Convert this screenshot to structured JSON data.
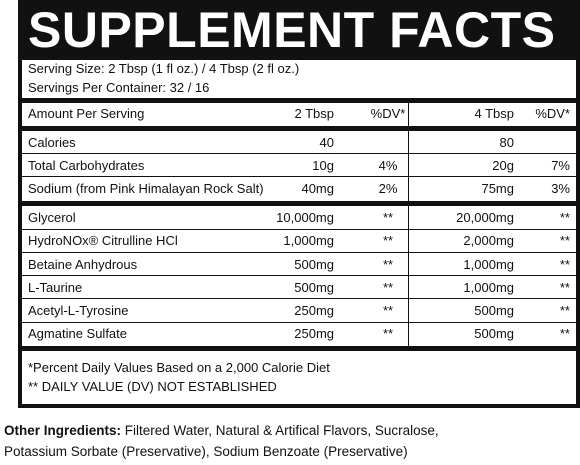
{
  "title": "SUPPLEMENT FACTS",
  "serving_size": "Serving Size: 2 Tbsp (1 fl oz.) / 4 Tbsp (2 fl oz.)",
  "servings_per_container": "Servings Per Container: 32 / 16",
  "header": {
    "name": "Amount Per Serving",
    "a": "2 Tbsp",
    "a_dv": "%DV*",
    "b": "4 Tbsp",
    "b_dv": "%DV*"
  },
  "sections": [
    {
      "rows": [
        {
          "name": "Calories",
          "a": "40",
          "b": "80"
        },
        {
          "name": "Total Carbohydrates",
          "a": "10g",
          "a_dv": "4%",
          "b": "20g",
          "b_dv": "7%"
        },
        {
          "name": "Sodium (from Pink Himalayan Rock Salt)",
          "a": "40mg",
          "a_dv": "2%",
          "b": "75mg",
          "b_dv": "3%"
        }
      ]
    },
    {
      "rows": [
        {
          "name": "Glycerol",
          "a": "10,000mg",
          "a_dv": "**",
          "b": "20,000mg",
          "b_dv": "**"
        },
        {
          "name": "HydroNOx® Citrulline HCl",
          "a": "1,000mg",
          "a_dv": "**",
          "b": "2,000mg",
          "b_dv": "**"
        },
        {
          "name": "Betaine Anhydrous",
          "a": "500mg",
          "a_dv": "**",
          "b": "1,000mg",
          "b_dv": "**"
        },
        {
          "name": "L-Taurine",
          "a": "500mg",
          "a_dv": "**",
          "b": "1,000mg",
          "b_dv": "**"
        },
        {
          "name": "Acetyl-L-Tyrosine",
          "a": "250mg",
          "a_dv": "**",
          "b": "500mg",
          "b_dv": "**"
        },
        {
          "name": "Agmatine Sulfate",
          "a": "250mg",
          "a_dv": "**",
          "b": "500mg",
          "b_dv": "**"
        }
      ]
    }
  ],
  "footnotes": [
    "*Percent Daily Values Based on a 2,000 Calorie Diet",
    "** DAILY VALUE (DV) NOT ESTABLISHED"
  ],
  "other_ingredients": {
    "label": "Other Ingredients:",
    "text": "Filtered Water, Natural & Artifical Flavors, Sucralose, Potassium Sorbate (Preservative), Sodium Benzoate (Preservative)"
  }
}
